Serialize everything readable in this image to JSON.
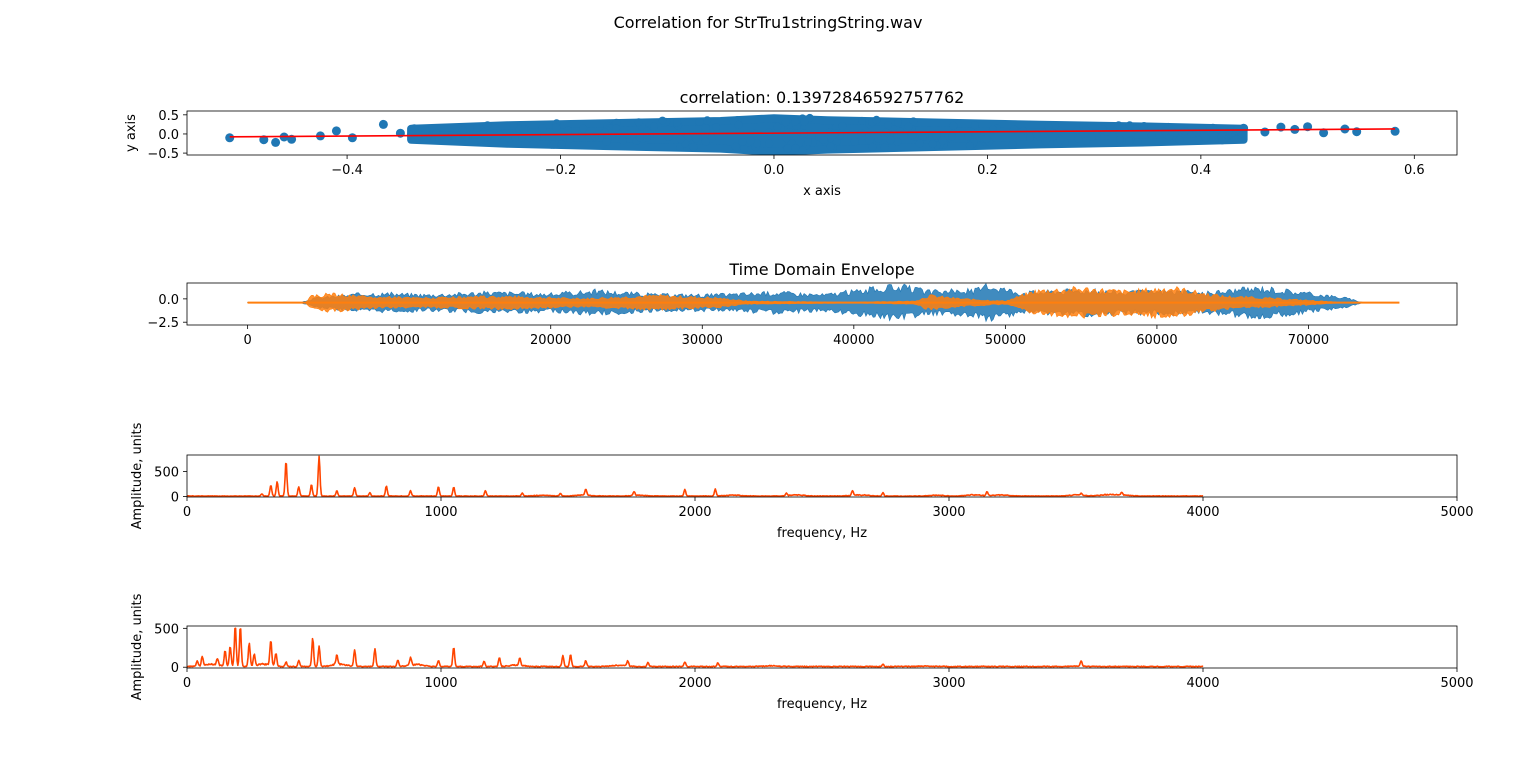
{
  "figure": {
    "suptitle": "Correlation for StrTru1stringString.wav"
  },
  "colors": {
    "scatter": "#1f77b4",
    "fit_line": "#ff0000",
    "channel_1": "#1f77b4",
    "channel_2": "#ff7f0e",
    "spectrum": "#ff4500"
  },
  "chart_data": [
    {
      "type": "scatter",
      "title": "correlation: 0.13972846592757762",
      "xlabel": "x axis",
      "ylabel": "y axis",
      "xlim": [
        -0.55,
        0.64
      ],
      "ylim": [
        -0.55,
        0.6
      ],
      "xticks": [
        -0.4,
        -0.2,
        0.0,
        0.2,
        0.4,
        0.6
      ],
      "xtick_labels": [
        "−0.4",
        "−0.2",
        "0.0",
        "0.2",
        "0.4",
        "0.6"
      ],
      "yticks": [
        0.5,
        0.0,
        -0.5
      ],
      "ytick_labels": [
        "0.5",
        "0.0",
        "−0.5"
      ],
      "outlier_points": [
        {
          "x": -0.51,
          "y": -0.1
        },
        {
          "x": -0.478,
          "y": -0.15
        },
        {
          "x": -0.467,
          "y": -0.22
        },
        {
          "x": -0.459,
          "y": -0.08
        },
        {
          "x": -0.452,
          "y": -0.14
        },
        {
          "x": -0.425,
          "y": -0.05
        },
        {
          "x": -0.41,
          "y": 0.08
        },
        {
          "x": -0.395,
          "y": -0.1
        },
        {
          "x": -0.366,
          "y": 0.25
        },
        {
          "x": -0.35,
          "y": 0.02
        },
        {
          "x": -0.33,
          "y": -0.06
        },
        {
          "x": 0.44,
          "y": 0.15
        },
        {
          "x": 0.46,
          "y": 0.05
        },
        {
          "x": 0.475,
          "y": 0.18
        },
        {
          "x": 0.488,
          "y": 0.12
        },
        {
          "x": 0.5,
          "y": 0.19
        },
        {
          "x": 0.515,
          "y": 0.03
        },
        {
          "x": 0.535,
          "y": 0.13
        },
        {
          "x": 0.546,
          "y": 0.06
        },
        {
          "x": 0.582,
          "y": 0.07
        }
      ],
      "dense_band": [
        {
          "x": -0.34,
          "half_height": 0.18
        },
        {
          "x": -0.25,
          "half_height": 0.3
        },
        {
          "x": -0.15,
          "half_height": 0.38
        },
        {
          "x": -0.05,
          "half_height": 0.45
        },
        {
          "x": 0.0,
          "half_height": 0.55
        },
        {
          "x": 0.05,
          "half_height": 0.48
        },
        {
          "x": 0.15,
          "half_height": 0.4
        },
        {
          "x": 0.25,
          "half_height": 0.32
        },
        {
          "x": 0.35,
          "half_height": 0.26
        },
        {
          "x": 0.44,
          "half_height": 0.18
        }
      ],
      "fit_line": {
        "x": [
          -0.51,
          0.582
        ],
        "y": [
          -0.075,
          0.13
        ]
      }
    },
    {
      "type": "area",
      "title": "Time Domain Envelope",
      "xlim": [
        -4000,
        79800
      ],
      "ylim": [
        -2.8,
        1.7
      ],
      "xticks": [
        0,
        10000,
        20000,
        30000,
        40000,
        50000,
        60000,
        70000
      ],
      "xtick_labels": [
        "0",
        "10000",
        "20000",
        "30000",
        "40000",
        "50000",
        "60000",
        "70000"
      ],
      "yticks": [
        0.0,
        -2.5
      ],
      "ytick_labels": [
        "0.0",
        "−2.5"
      ],
      "baseline": -0.4,
      "series": [
        {
          "color_key": "channel_1",
          "points": [
            [
              0,
              0.01
            ],
            [
              3500,
              0.01
            ],
            [
              4500,
              0.6
            ],
            [
              8000,
              1.2
            ],
            [
              12000,
              1.0
            ],
            [
              16000,
              1.3
            ],
            [
              20000,
              1.1
            ],
            [
              23000,
              1.5
            ],
            [
              27000,
              1.0
            ],
            [
              31000,
              1.0
            ],
            [
              35000,
              1.3
            ],
            [
              38000,
              1.0
            ],
            [
              41000,
              1.7
            ],
            [
              43000,
              2.1
            ],
            [
              45000,
              1.4
            ],
            [
              48000,
              1.6
            ],
            [
              49000,
              2.2
            ],
            [
              51000,
              1.3
            ],
            [
              55000,
              1.6
            ],
            [
              58000,
              1.3
            ],
            [
              61000,
              1.5
            ],
            [
              63000,
              1.2
            ],
            [
              65000,
              1.6
            ],
            [
              67000,
              1.9
            ],
            [
              70000,
              1.2
            ],
            [
              72500,
              0.6
            ],
            [
              73500,
              0.05
            ],
            [
              76000,
              0.01
            ]
          ]
        },
        {
          "color_key": "channel_2",
          "points": [
            [
              0,
              0.01
            ],
            [
              3800,
              0.01
            ],
            [
              4200,
              0.8
            ],
            [
              5500,
              1.1
            ],
            [
              8000,
              0.7
            ],
            [
              12000,
              0.6
            ],
            [
              17000,
              0.8
            ],
            [
              22000,
              0.5
            ],
            [
              27000,
              0.9
            ],
            [
              31000,
              0.6
            ],
            [
              33000,
              0.2
            ],
            [
              40000,
              0.05
            ],
            [
              44000,
              0.2
            ],
            [
              45000,
              0.9
            ],
            [
              47000,
              0.5
            ],
            [
              50000,
              0.2
            ],
            [
              52000,
              1.5
            ],
            [
              55000,
              1.8
            ],
            [
              58000,
              1.4
            ],
            [
              61000,
              1.9
            ],
            [
              63000,
              1.2
            ],
            [
              64500,
              0.8
            ],
            [
              67000,
              0.6
            ],
            [
              70000,
              0.3
            ],
            [
              72000,
              0.05
            ],
            [
              76000,
              0.01
            ]
          ]
        }
      ]
    },
    {
      "type": "line",
      "xlabel": "frequency, Hz",
      "ylabel": "Amplitude, units",
      "xlim": [
        0,
        5000
      ],
      "ylim": [
        -10,
        830
      ],
      "xticks": [
        0,
        1000,
        2000,
        3000,
        4000,
        5000
      ],
      "xtick_labels": [
        "0",
        "1000",
        "2000",
        "3000",
        "4000",
        "5000"
      ],
      "yticks": [
        0,
        500
      ],
      "ytick_labels": [
        "0",
        "500"
      ],
      "x_max": 4000,
      "peaks": [
        [
          295,
          40
        ],
        [
          330,
          220
        ],
        [
          355,
          290
        ],
        [
          390,
          700
        ],
        [
          440,
          180
        ],
        [
          490,
          230
        ],
        [
          520,
          800
        ],
        [
          590,
          110
        ],
        [
          660,
          170
        ],
        [
          720,
          70
        ],
        [
          785,
          200
        ],
        [
          880,
          110
        ],
        [
          990,
          190
        ],
        [
          1050,
          180
        ],
        [
          1175,
          110
        ],
        [
          1320,
          60
        ],
        [
          1470,
          50
        ],
        [
          1570,
          120
        ],
        [
          1760,
          80
        ],
        [
          1960,
          130
        ],
        [
          2080,
          140
        ],
        [
          2360,
          50
        ],
        [
          2620,
          100
        ],
        [
          2740,
          70
        ],
        [
          3150,
          80
        ],
        [
          3520,
          40
        ],
        [
          3680,
          50
        ]
      ],
      "noise_bumps": [
        [
          1400,
          20
        ],
        [
          1560,
          25
        ],
        [
          1780,
          20
        ],
        [
          2150,
          25
        ],
        [
          2400,
          30
        ],
        [
          2650,
          30
        ],
        [
          2950,
          20
        ],
        [
          3100,
          35
        ],
        [
          3200,
          30
        ],
        [
          3500,
          30
        ],
        [
          3620,
          35
        ],
        [
          3680,
          30
        ]
      ]
    },
    {
      "type": "line",
      "xlabel": "frequency, Hz",
      "ylabel": "Amplitude, units",
      "xlim": [
        0,
        5000
      ],
      "ylim": [
        -10,
        530
      ],
      "xticks": [
        0,
        1000,
        2000,
        3000,
        4000,
        5000
      ],
      "xtick_labels": [
        "0",
        "1000",
        "2000",
        "3000",
        "4000",
        "5000"
      ],
      "yticks": [
        0,
        500
      ],
      "ytick_labels": [
        "0",
        "500"
      ],
      "x_max": 4000,
      "peaks": [
        [
          40,
          70
        ],
        [
          60,
          120
        ],
        [
          120,
          80
        ],
        [
          150,
          200
        ],
        [
          170,
          260
        ],
        [
          190,
          530
        ],
        [
          210,
          520
        ],
        [
          245,
          300
        ],
        [
          265,
          150
        ],
        [
          330,
          320
        ],
        [
          350,
          170
        ],
        [
          390,
          60
        ],
        [
          440,
          80
        ],
        [
          495,
          370
        ],
        [
          520,
          260
        ],
        [
          590,
          130
        ],
        [
          660,
          210
        ],
        [
          740,
          230
        ],
        [
          830,
          80
        ],
        [
          880,
          100
        ],
        [
          990,
          80
        ],
        [
          1050,
          250
        ],
        [
          1170,
          70
        ],
        [
          1230,
          120
        ],
        [
          1310,
          100
        ],
        [
          1480,
          140
        ],
        [
          1510,
          160
        ],
        [
          1570,
          80
        ],
        [
          1735,
          70
        ],
        [
          1815,
          50
        ],
        [
          1960,
          60
        ],
        [
          2090,
          50
        ],
        [
          2740,
          30
        ],
        [
          3520,
          70
        ]
      ],
      "noise_bumps": [
        [
          100,
          40
        ],
        [
          300,
          40
        ],
        [
          600,
          40
        ],
        [
          900,
          35
        ],
        [
          1300,
          25
        ],
        [
          1700,
          20
        ],
        [
          2300,
          12
        ],
        [
          2900,
          8
        ],
        [
          3500,
          8
        ]
      ]
    }
  ]
}
